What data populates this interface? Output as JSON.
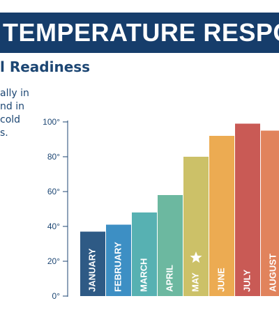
{
  "header": {
    "banner_title": "TEMPERATURE RESPO",
    "subtitle": "l Readiness",
    "body_lines": [
      "ally in",
      "nd in",
      "cold",
      "s."
    ]
  },
  "chart_data": {
    "type": "bar",
    "categories": [
      "JANUARY",
      "FEBRUARY",
      "MARCH",
      "APRIL",
      "MAY",
      "JUNE",
      "JULY",
      "AUGUST"
    ],
    "values": [
      37,
      41,
      48,
      58,
      80,
      92,
      99,
      95
    ],
    "colors": [
      "#2e5a85",
      "#3d8fc4",
      "#57b1b2",
      "#6cb8a0",
      "#ccc168",
      "#ecab52",
      "#c95a55",
      "#e1835c"
    ],
    "yticks": [
      "0°",
      "20°",
      "40°",
      "60°",
      "80°",
      "100°"
    ],
    "ytick_values": [
      0,
      20,
      40,
      60,
      80,
      100
    ],
    "ylim": [
      0,
      100
    ],
    "marker_category": "MAY",
    "marker_icon": "star-icon",
    "axis_color": "#1c4673",
    "grid": false
  }
}
